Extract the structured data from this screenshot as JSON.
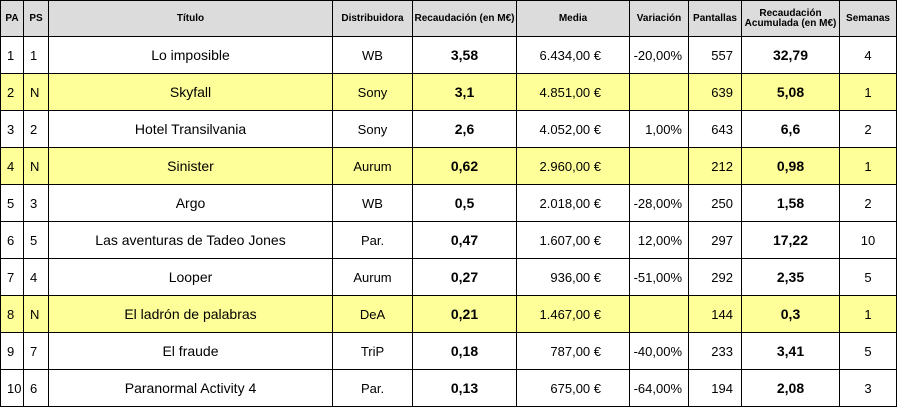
{
  "headers": [
    "PA",
    "PS",
    "Título",
    "Distribuidora",
    "Recaudación (en M€)",
    "Media",
    "Variación",
    "Pantallas",
    "Recaudación Acumulada (en M€)",
    "Semanas"
  ],
  "rows": [
    {
      "pa": "1",
      "ps": "1",
      "titulo": "Lo imposible",
      "distribuidora": "WB",
      "recaudacion": "3,58",
      "media": "6.434,00 €",
      "variacion": "-20,00%",
      "pantallas": "557",
      "acumulada": "32,79",
      "semanas": "4",
      "highlight": false
    },
    {
      "pa": "2",
      "ps": "N",
      "titulo": "Skyfall",
      "distribuidora": "Sony",
      "recaudacion": "3,1",
      "media": "4.851,00 €",
      "variacion": "",
      "pantallas": "639",
      "acumulada": "5,08",
      "semanas": "1",
      "highlight": true
    },
    {
      "pa": "3",
      "ps": "2",
      "titulo": "Hotel Transilvania",
      "distribuidora": "Sony",
      "recaudacion": "2,6",
      "media": "4.052,00 €",
      "variacion": "1,00%",
      "pantallas": "643",
      "acumulada": "6,6",
      "semanas": "2",
      "highlight": false
    },
    {
      "pa": "4",
      "ps": "N",
      "titulo": "Sinister",
      "distribuidora": "Aurum",
      "recaudacion": "0,62",
      "media": "2.960,00 €",
      "variacion": "",
      "pantallas": "212",
      "acumulada": "0,98",
      "semanas": "1",
      "highlight": true
    },
    {
      "pa": "5",
      "ps": "3",
      "titulo": "Argo",
      "distribuidora": "WB",
      "recaudacion": "0,5",
      "media": "2.018,00 €",
      "variacion": "-28,00%",
      "pantallas": "250",
      "acumulada": "1,58",
      "semanas": "2",
      "highlight": false
    },
    {
      "pa": "6",
      "ps": "5",
      "titulo": "Las aventuras de Tadeo Jones",
      "distribuidora": "Par.",
      "recaudacion": "0,47",
      "media": "1.607,00 €",
      "variacion": "12,00%",
      "pantallas": "297",
      "acumulada": "17,22",
      "semanas": "10",
      "highlight": false
    },
    {
      "pa": "7",
      "ps": "4",
      "titulo": "Looper",
      "distribuidora": "Aurum",
      "recaudacion": "0,27",
      "media": "936,00 €",
      "variacion": "-51,00%",
      "pantallas": "292",
      "acumulada": "2,35",
      "semanas": "5",
      "highlight": false
    },
    {
      "pa": "8",
      "ps": "N",
      "titulo": "El ladrón de palabras",
      "distribuidora": "DeA",
      "recaudacion": "0,21",
      "media": "1.467,00 €",
      "variacion": "",
      "pantallas": "144",
      "acumulada": "0,3",
      "semanas": "1",
      "highlight": true
    },
    {
      "pa": "9",
      "ps": "7",
      "titulo": "El fraude",
      "distribuidora": "TriP",
      "recaudacion": "0,18",
      "media": "787,00 €",
      "variacion": "-40,00%",
      "pantallas": "233",
      "acumulada": "3,41",
      "semanas": "5",
      "highlight": false
    },
    {
      "pa": "10",
      "ps": "6",
      "titulo": "Paranormal Activity 4",
      "distribuidora": "Par.",
      "recaudacion": "0,13",
      "media": "675,00 €",
      "variacion": "-64,00%",
      "pantallas": "194",
      "acumulada": "2,08",
      "semanas": "3",
      "highlight": false
    }
  ],
  "colors": {
    "header_bg": "#dcdcdc",
    "highlight_bg": "#ffff99",
    "border": "#000000"
  }
}
